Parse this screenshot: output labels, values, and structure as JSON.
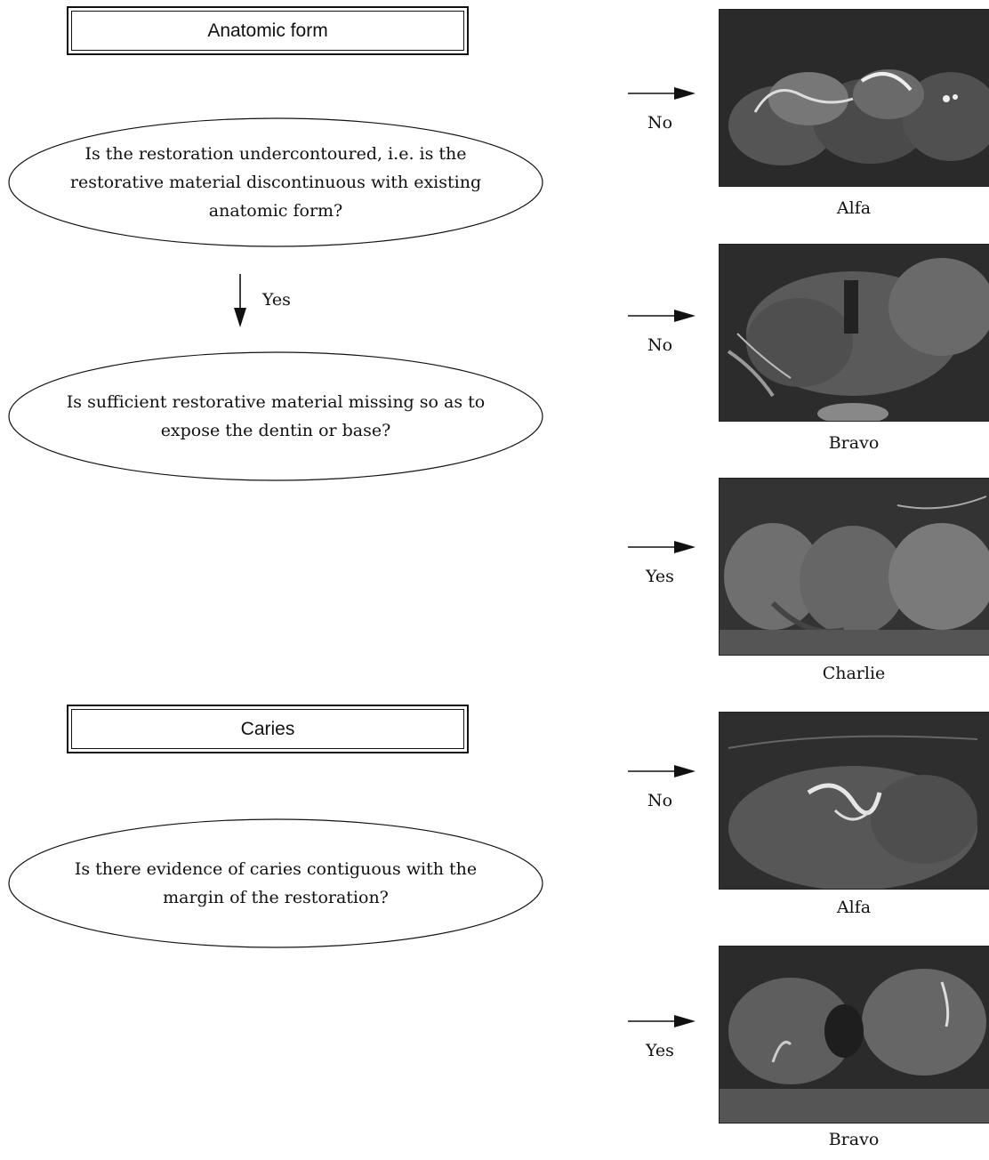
{
  "sections": {
    "anatomic_form": {
      "title": "Anatomic form",
      "question1": "Is the restoration undercontoured, i.e. is the restorative material discontinuous with existing anatomic form?",
      "yes_label": "Yes",
      "question2": "Is sufficient restorative material missing so as to expose the dentin or base?"
    },
    "caries": {
      "title": "Caries",
      "question1": "Is there evidence of caries contiguous with the margin of the restoration?"
    }
  },
  "outcomes": [
    {
      "answer": "No",
      "rating": "Alfa"
    },
    {
      "answer": "No",
      "rating": "Bravo"
    },
    {
      "answer": "Yes",
      "rating": "Charlie"
    },
    {
      "answer": "No",
      "rating": "Alfa"
    },
    {
      "answer": "Yes",
      "rating": "Bravo"
    }
  ]
}
